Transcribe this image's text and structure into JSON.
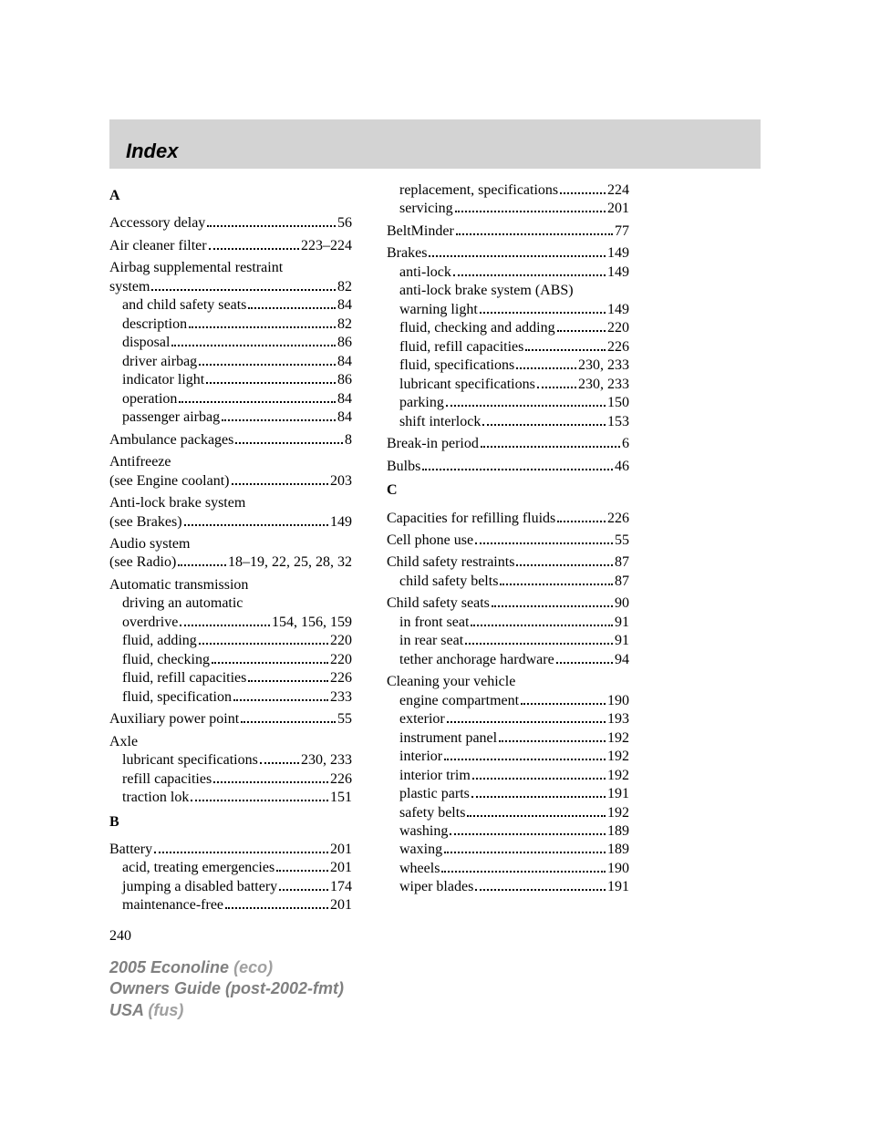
{
  "header": {
    "title": "Index"
  },
  "page_number": "240",
  "footer": {
    "line1_bold": "2005 Econoline",
    "line1_light": "(eco)",
    "line2_bold": "Owners Guide (post-2002-fmt)",
    "line3_bold": "USA",
    "line3_light": "(fus)"
  },
  "left": [
    {
      "type": "letter",
      "text": "A"
    },
    {
      "type": "entry",
      "rows": [
        {
          "label": "Accessory delay",
          "page": "56"
        }
      ]
    },
    {
      "type": "entry",
      "rows": [
        {
          "label": "Air cleaner filter",
          "page": "223–224"
        }
      ]
    },
    {
      "type": "entry",
      "rows": [
        {
          "label": "Airbag supplemental restraint",
          "nobreak": true
        },
        {
          "label": "system",
          "page": "82"
        },
        {
          "label": "and child safety seats",
          "page": "84",
          "sub": true
        },
        {
          "label": "description",
          "page": "82",
          "sub": true
        },
        {
          "label": "disposal",
          "page": "86",
          "sub": true
        },
        {
          "label": "driver airbag",
          "page": "84",
          "sub": true
        },
        {
          "label": "indicator light",
          "page": "86",
          "sub": true
        },
        {
          "label": "operation",
          "page": "84",
          "sub": true
        },
        {
          "label": "passenger airbag",
          "page": "84",
          "sub": true
        }
      ]
    },
    {
      "type": "entry",
      "rows": [
        {
          "label": "Ambulance packages",
          "page": "8"
        }
      ]
    },
    {
      "type": "entry",
      "rows": [
        {
          "label": "Antifreeze",
          "nobreak": true
        },
        {
          "label": "(see Engine coolant)",
          "page": "203"
        }
      ]
    },
    {
      "type": "entry",
      "rows": [
        {
          "label": "Anti-lock brake system",
          "nobreak": true
        },
        {
          "label": "(see Brakes)",
          "page": "149"
        }
      ]
    },
    {
      "type": "entry",
      "rows": [
        {
          "label": "Audio system",
          "nobreak": true
        },
        {
          "label": "(see Radio)",
          "page": "18–19, 22, 25, 28, 32"
        }
      ]
    },
    {
      "type": "entry",
      "rows": [
        {
          "label": "Automatic transmission",
          "nobreak": true
        },
        {
          "label": "driving an automatic",
          "sub": true,
          "nobreak": true
        },
        {
          "label": "overdrive",
          "page": "154, 156, 159",
          "sub": true
        },
        {
          "label": "fluid, adding",
          "page": "220",
          "sub": true
        },
        {
          "label": "fluid, checking",
          "page": "220",
          "sub": true
        },
        {
          "label": "fluid, refill capacities",
          "page": "226",
          "sub": true
        },
        {
          "label": "fluid, specification",
          "page": "233",
          "sub": true
        }
      ]
    },
    {
      "type": "entry",
      "rows": [
        {
          "label": "Auxiliary power point",
          "page": "55"
        }
      ]
    },
    {
      "type": "entry",
      "rows": [
        {
          "label": "Axle",
          "nobreak": true
        },
        {
          "label": "lubricant specifications",
          "page": "230, 233",
          "sub": true
        },
        {
          "label": "refill capacities",
          "page": "226",
          "sub": true
        },
        {
          "label": "traction lok",
          "page": "151",
          "sub": true
        }
      ]
    },
    {
      "type": "letter",
      "text": "B"
    },
    {
      "type": "entry",
      "rows": [
        {
          "label": "Battery",
          "page": "201"
        },
        {
          "label": "acid, treating emergencies",
          "page": "201",
          "sub": true
        },
        {
          "label": "jumping a disabled battery",
          "page": "174",
          "sub": true
        },
        {
          "label": "maintenance-free",
          "page": "201",
          "sub": true
        }
      ]
    }
  ],
  "right": [
    {
      "type": "entry",
      "rows": [
        {
          "label": "replacement, specifications",
          "page": "224",
          "sub": true
        },
        {
          "label": "servicing",
          "page": "201",
          "sub": true
        }
      ]
    },
    {
      "type": "entry",
      "rows": [
        {
          "label": "BeltMinder",
          "page": "77"
        }
      ]
    },
    {
      "type": "entry",
      "rows": [
        {
          "label": "Brakes",
          "page": "149"
        },
        {
          "label": "anti-lock",
          "page": "149",
          "sub": true
        },
        {
          "label": "anti-lock brake system (ABS)",
          "sub": true,
          "nobreak": true
        },
        {
          "label": "warning light",
          "page": "149",
          "sub": true
        },
        {
          "label": "fluid, checking and adding",
          "page": "220",
          "sub": true
        },
        {
          "label": "fluid, refill capacities",
          "page": "226",
          "sub": true
        },
        {
          "label": "fluid, specifications",
          "page": "230, 233",
          "sub": true
        },
        {
          "label": "lubricant specifications",
          "page": "230, 233",
          "sub": true
        },
        {
          "label": "parking",
          "page": "150",
          "sub": true
        },
        {
          "label": "shift interlock",
          "page": "153",
          "sub": true
        }
      ]
    },
    {
      "type": "entry",
      "rows": [
        {
          "label": "Break-in period",
          "page": "6"
        }
      ]
    },
    {
      "type": "entry",
      "rows": [
        {
          "label": "Bulbs",
          "page": "46"
        }
      ]
    },
    {
      "type": "letter",
      "text": "C"
    },
    {
      "type": "entry",
      "rows": [
        {
          "label": "Capacities for refilling fluids",
          "page": "226"
        }
      ]
    },
    {
      "type": "entry",
      "rows": [
        {
          "label": "Cell phone use",
          "page": "55"
        }
      ]
    },
    {
      "type": "entry",
      "rows": [
        {
          "label": "Child safety restraints",
          "page": "87"
        },
        {
          "label": "child safety belts",
          "page": "87",
          "sub": true
        }
      ]
    },
    {
      "type": "entry",
      "rows": [
        {
          "label": "Child safety seats",
          "page": "90"
        },
        {
          "label": "in front seat",
          "page": "91",
          "sub": true
        },
        {
          "label": "in rear seat",
          "page": "91",
          "sub": true
        },
        {
          "label": "tether anchorage hardware",
          "page": "94",
          "sub": true
        }
      ]
    },
    {
      "type": "entry",
      "rows": [
        {
          "label": "Cleaning your vehicle",
          "nobreak": true
        },
        {
          "label": "engine compartment",
          "page": "190",
          "sub": true
        },
        {
          "label": "exterior",
          "page": "193",
          "sub": true
        },
        {
          "label": "instrument panel",
          "page": "192",
          "sub": true
        },
        {
          "label": "interior",
          "page": "192",
          "sub": true
        },
        {
          "label": "interior trim",
          "page": "192",
          "sub": true
        },
        {
          "label": "plastic parts",
          "page": "191",
          "sub": true
        },
        {
          "label": "safety belts",
          "page": "192",
          "sub": true
        },
        {
          "label": "washing",
          "page": "189",
          "sub": true
        },
        {
          "label": "waxing",
          "page": "189",
          "sub": true
        },
        {
          "label": "wheels",
          "page": "190",
          "sub": true
        },
        {
          "label": "wiper blades",
          "page": "191",
          "sub": true
        }
      ]
    }
  ]
}
